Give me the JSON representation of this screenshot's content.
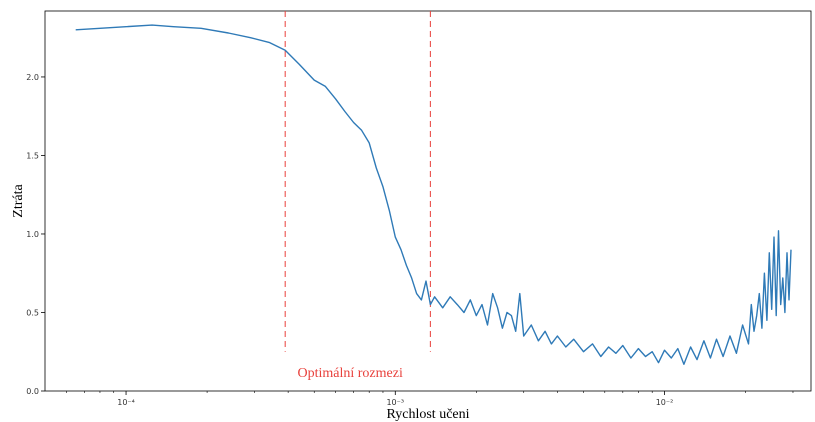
{
  "chart_data": {
    "type": "line",
    "title": "",
    "xlabel": "Rychlost učeni",
    "ylabel": "Ztráta",
    "xscale": "log",
    "xlim": [
      5e-05,
      0.035
    ],
    "ylim": [
      0.0,
      2.42
    ],
    "grid": false,
    "legend": "none",
    "line_color": "#2f7ab7",
    "xticks": [
      {
        "value": 0.0001,
        "label": "10⁻⁴"
      },
      {
        "value": 0.001,
        "label": "10⁻³"
      },
      {
        "value": 0.01,
        "label": "10⁻²"
      }
    ],
    "yticks": [
      {
        "value": 0.0,
        "label": "0.0"
      },
      {
        "value": 0.5,
        "label": "0.5"
      },
      {
        "value": 1.0,
        "label": "1.0"
      },
      {
        "value": 1.5,
        "label": "1.5"
      },
      {
        "value": 2.0,
        "label": "2.0"
      }
    ],
    "vlines": [
      {
        "x": 0.00039,
        "y_range": [
          0.25,
          2.42
        ],
        "color": "#e8413c",
        "style": "dashed"
      },
      {
        "x": 0.00135,
        "y_range": [
          0.25,
          2.42
        ],
        "color": "#e8413c",
        "style": "dashed"
      }
    ],
    "annotation": {
      "text": "Optimální rozmezi",
      "x": 0.00068,
      "y": 0.12,
      "color": "#e8413c"
    },
    "series": [
      {
        "x": [
          6.5e-05,
          8e-05,
          0.0001,
          0.000125,
          0.00015,
          0.00019,
          0.00024,
          0.00029,
          0.00034,
          0.00039,
          0.00044,
          0.0005,
          0.00055,
          0.0006,
          0.00065,
          0.0007,
          0.00075,
          0.0008,
          0.00085,
          0.0009,
          0.00095,
          0.001,
          0.00105,
          0.0011,
          0.00115,
          0.0012,
          0.00125,
          0.0013,
          0.00135,
          0.0014,
          0.0015,
          0.0016,
          0.0017,
          0.0018,
          0.0019,
          0.002,
          0.0021,
          0.0022,
          0.0023,
          0.0024,
          0.0025,
          0.0026,
          0.0027,
          0.0028,
          0.0029,
          0.003,
          0.0032,
          0.0034,
          0.0036,
          0.0038,
          0.004,
          0.0043,
          0.0046,
          0.005,
          0.0054,
          0.0058,
          0.0062,
          0.0066,
          0.007,
          0.0075,
          0.008,
          0.0085,
          0.009,
          0.0095,
          0.01,
          0.0106,
          0.0112,
          0.0118,
          0.0125,
          0.0132,
          0.014,
          0.0148,
          0.0156,
          0.0165,
          0.0175,
          0.0185,
          0.0195,
          0.0205,
          0.021,
          0.0215,
          0.022,
          0.0225,
          0.023,
          0.0235,
          0.024,
          0.0245,
          0.025,
          0.0255,
          0.026,
          0.0265,
          0.027,
          0.0275,
          0.028,
          0.0285,
          0.029,
          0.0295
        ],
        "y": [
          2.3,
          2.31,
          2.32,
          2.33,
          2.32,
          2.31,
          2.28,
          2.25,
          2.22,
          2.17,
          2.08,
          1.98,
          1.94,
          1.86,
          1.78,
          1.71,
          1.66,
          1.58,
          1.42,
          1.3,
          1.15,
          0.98,
          0.9,
          0.8,
          0.72,
          0.62,
          0.58,
          0.7,
          0.55,
          0.6,
          0.53,
          0.6,
          0.55,
          0.5,
          0.58,
          0.48,
          0.55,
          0.42,
          0.62,
          0.53,
          0.4,
          0.5,
          0.48,
          0.38,
          0.62,
          0.35,
          0.42,
          0.32,
          0.38,
          0.3,
          0.35,
          0.28,
          0.33,
          0.25,
          0.3,
          0.22,
          0.28,
          0.24,
          0.29,
          0.21,
          0.27,
          0.22,
          0.25,
          0.18,
          0.26,
          0.21,
          0.27,
          0.17,
          0.28,
          0.2,
          0.32,
          0.21,
          0.33,
          0.22,
          0.35,
          0.24,
          0.42,
          0.3,
          0.55,
          0.38,
          0.48,
          0.62,
          0.4,
          0.75,
          0.45,
          0.88,
          0.52,
          0.98,
          0.48,
          1.02,
          0.55,
          0.72,
          0.5,
          0.88,
          0.58,
          0.9
        ]
      }
    ]
  }
}
